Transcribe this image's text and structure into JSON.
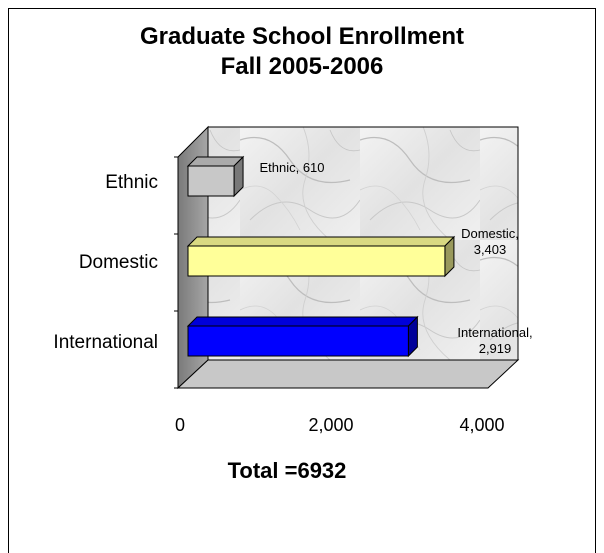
{
  "chart_data": {
    "type": "bar",
    "orientation": "horizontal",
    "style": "3d",
    "title": "Graduate School Enrollment",
    "subtitle": "Fall 2005-2006",
    "categories": [
      "Ethnic",
      "Domestic",
      "International"
    ],
    "series": [
      {
        "values": [
          610,
          3403,
          2919
        ],
        "colors": [
          "#c8c8c8",
          "#ffff99",
          "#0000ff"
        ]
      }
    ],
    "data_labels": [
      [
        "Ethnic, 610"
      ],
      [
        "Domestic,",
        "3,403"
      ],
      [
        "International,",
        "2,919"
      ]
    ],
    "xlim": [
      0,
      4000
    ],
    "xticks": [
      0,
      2000,
      4000
    ],
    "xtick_labels": [
      "0",
      "2,000",
      "4,000"
    ],
    "grid": false,
    "legend": "none",
    "background": "marble texture"
  },
  "footer": {
    "total_label": "Total =6932"
  }
}
